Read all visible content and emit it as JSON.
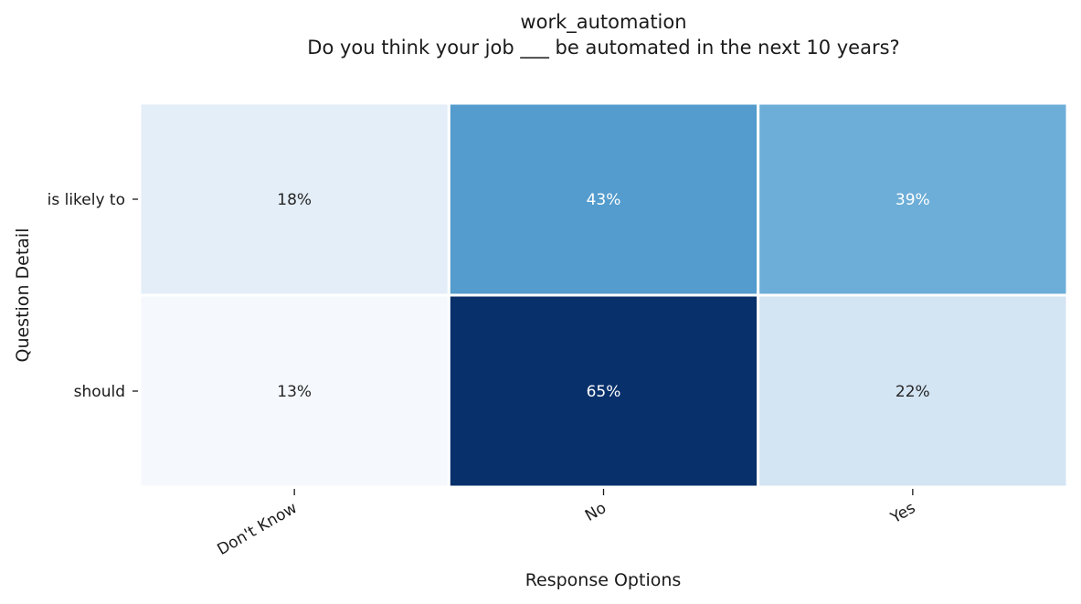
{
  "chart_data": {
    "type": "heatmap",
    "title": "work_automation",
    "subtitle": "Do you think your job  ___  be automated in the next 10 years?",
    "xlabel": "Response Options",
    "ylabel": "Question Detail",
    "x_categories": [
      "Don't Know",
      "No",
      "Yes"
    ],
    "y_categories": [
      "is likely to",
      "should"
    ],
    "values": [
      [
        18,
        43,
        39
      ],
      [
        13,
        65,
        22
      ]
    ],
    "cell_labels": [
      [
        "18%",
        "43%",
        "39%"
      ],
      [
        "13%",
        "65%",
        "22%"
      ]
    ],
    "colormap": "Blues",
    "colors": [
      [
        "#e3eef8",
        "#539ccd",
        "#6daed8"
      ],
      [
        "#f5f9fe",
        "#08306b",
        "#d3e4f3"
      ]
    ],
    "label_colors": [
      [
        "#262626",
        "#ffffff",
        "#ffffff"
      ],
      [
        "#262626",
        "#ffffff",
        "#262626"
      ]
    ],
    "grid_color": "#ffffff",
    "legend": false
  }
}
